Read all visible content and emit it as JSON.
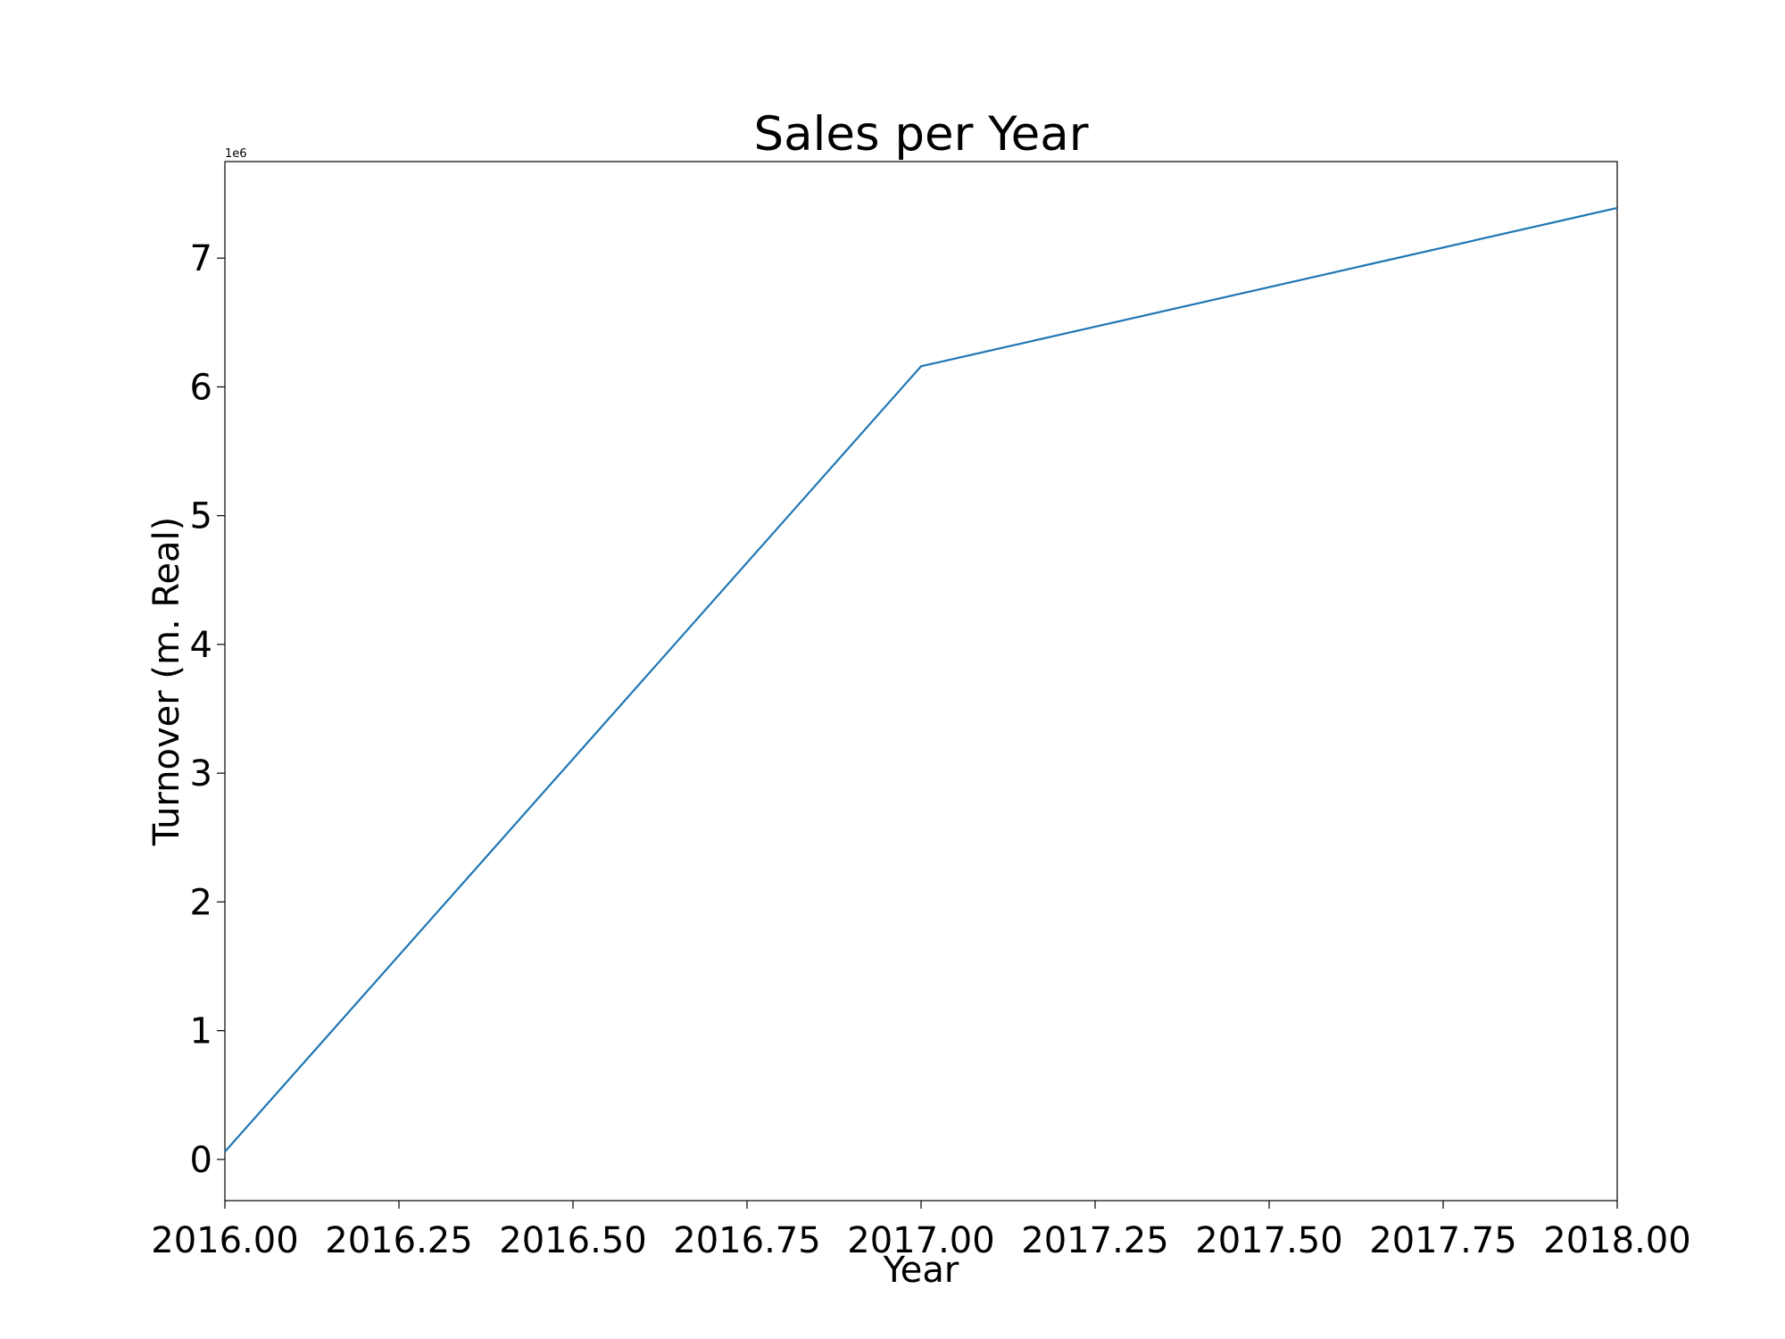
{
  "chart_data": {
    "type": "line",
    "title": "Sales per Year",
    "xlabel": "Year",
    "ylabel": "Turnover (m. Real)",
    "y_offset_label": "1e6",
    "xlim": [
      2016.0,
      2018.0
    ],
    "ylim": [
      -320000,
      7750000
    ],
    "x_ticks": [
      2016.0,
      2016.25,
      2016.5,
      2016.75,
      2017.0,
      2017.25,
      2017.5,
      2017.75,
      2018.0
    ],
    "x_tick_labels": [
      "2016.00",
      "2016.25",
      "2016.50",
      "2016.75",
      "2017.00",
      "2017.25",
      "2017.50",
      "2017.75",
      "2018.00"
    ],
    "y_ticks": [
      0,
      1000000,
      2000000,
      3000000,
      4000000,
      5000000,
      6000000,
      7000000
    ],
    "y_tick_labels": [
      "0",
      "1",
      "2",
      "3",
      "4",
      "5",
      "6",
      "7"
    ],
    "grid": false,
    "series": [
      {
        "color": "#1f77b4",
        "x": [
          2016,
          2017,
          2018
        ],
        "y": [
          60000,
          6160000,
          7390000
        ]
      }
    ]
  }
}
